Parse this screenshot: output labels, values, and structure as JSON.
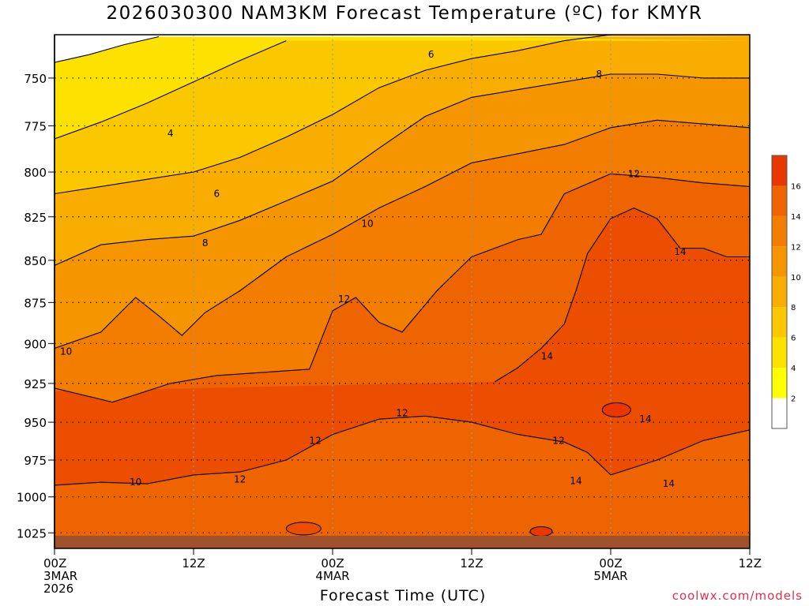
{
  "chart_data": {
    "type": "heatmap",
    "title": "2026030300 NAM3KM Forecast Temperature (ºC) for KMYR",
    "xlabel": "Forecast Time (UTC)",
    "ylabel": "",
    "credit": "coolwx.com/models",
    "x_ticks": [
      {
        "label": "00Z",
        "label2": "3MAR",
        "label3": "2026",
        "hour": 0
      },
      {
        "label": "12Z",
        "label2": "",
        "label3": "",
        "hour": 12
      },
      {
        "label": "00Z",
        "label2": "4MAR",
        "label3": "",
        "hour": 24
      },
      {
        "label": "12Z",
        "label2": "",
        "label3": "",
        "hour": 36
      },
      {
        "label": "00Z",
        "label2": "5MAR",
        "label3": "",
        "hour": 48
      },
      {
        "label": "12Z",
        "label2": "",
        "label3": "",
        "hour": 60
      }
    ],
    "xlim": [
      0,
      60
    ],
    "y_ticks": [
      "750",
      "775",
      "800",
      "825",
      "850",
      "875",
      "900",
      "925",
      "950",
      "975",
      "1000",
      "1025"
    ],
    "ylim": [
      728,
      1036
    ],
    "y_scale": "log-pressure",
    "legend_placement": "right",
    "legend_levels": [
      2,
      4,
      6,
      8,
      10,
      12,
      14,
      16
    ],
    "legend_labels": [
      "2",
      "4",
      "6",
      "8",
      "10",
      "12",
      "14",
      "16"
    ],
    "legend_colors": [
      "#ffffff",
      "#ffff00",
      "#fde200",
      "#fbc800",
      "#f9ad00",
      "#f59500",
      "#f27d00",
      "#ee6400",
      "#eb4e00",
      "#e83800",
      "#e62a00"
    ],
    "ground_color": "#a0522d",
    "contour_labels": [
      {
        "text": "4",
        "hour": 10,
        "p": 779
      },
      {
        "text": "6",
        "hour": 32.5,
        "p": 738
      },
      {
        "text": "6",
        "hour": 14,
        "p": 812
      },
      {
        "text": "8",
        "hour": 47,
        "p": 748
      },
      {
        "text": "8",
        "hour": 13,
        "p": 840
      },
      {
        "text": "10",
        "hour": 27,
        "p": 829
      },
      {
        "text": "10",
        "hour": 1,
        "p": 905
      },
      {
        "text": "10",
        "hour": 7,
        "p": 990
      },
      {
        "text": "12",
        "hour": 50,
        "p": 801
      },
      {
        "text": "12",
        "hour": 25,
        "p": 873
      },
      {
        "text": "12",
        "hour": 30,
        "p": 944
      },
      {
        "text": "12",
        "hour": 22.5,
        "p": 962
      },
      {
        "text": "12",
        "hour": 16,
        "p": 988
      },
      {
        "text": "12",
        "hour": 43.5,
        "p": 962
      },
      {
        "text": "14",
        "hour": 54,
        "p": 845
      },
      {
        "text": "14",
        "hour": 42.5,
        "p": 908
      },
      {
        "text": "14",
        "hour": 51,
        "p": 948
      },
      {
        "text": "14",
        "hour": 45,
        "p": 989
      },
      {
        "text": "14",
        "hour": 53,
        "p": 991
      }
    ],
    "isotherms": {
      "t4": [
        [
          0,
          742
        ],
        [
          3,
          738
        ],
        [
          6,
          733
        ],
        [
          9,
          729
        ]
      ],
      "t4b": [
        [
          0,
          782
        ],
        [
          4,
          773
        ],
        [
          8,
          763
        ],
        [
          12,
          752
        ],
        [
          16,
          741
        ],
        [
          20,
          731
        ]
      ],
      "t6": [
        [
          0,
          812
        ],
        [
          4,
          808
        ],
        [
          8,
          804
        ],
        [
          12,
          800
        ],
        [
          16,
          792
        ],
        [
          20,
          781
        ],
        [
          24,
          769
        ],
        [
          28,
          755
        ],
        [
          32,
          746
        ],
        [
          36,
          740
        ],
        [
          40,
          736
        ],
        [
          44,
          731
        ],
        [
          48,
          728
        ]
      ],
      "t8": [
        [
          0,
          853
        ],
        [
          4,
          841
        ],
        [
          8,
          838
        ],
        [
          12,
          836
        ],
        [
          16,
          827
        ],
        [
          20,
          816
        ],
        [
          24,
          805
        ],
        [
          28,
          787
        ],
        [
          32,
          770
        ],
        [
          36,
          760
        ],
        [
          40,
          756
        ],
        [
          44,
          752
        ],
        [
          48,
          748
        ],
        [
          52,
          748
        ],
        [
          56,
          750
        ],
        [
          60,
          750
        ]
      ],
      "t10": [
        [
          0,
          903
        ],
        [
          4,
          893
        ],
        [
          7,
          872
        ],
        [
          9,
          883
        ],
        [
          11,
          895
        ],
        [
          13,
          881
        ],
        [
          16,
          868
        ],
        [
          20,
          848
        ],
        [
          24,
          835
        ],
        [
          28,
          820
        ],
        [
          32,
          808
        ],
        [
          36,
          795
        ],
        [
          40,
          790
        ],
        [
          44,
          785
        ],
        [
          48,
          776
        ],
        [
          52,
          772
        ],
        [
          56,
          774
        ],
        [
          60,
          776
        ]
      ],
      "t12": [
        [
          0,
          928
        ],
        [
          5,
          937
        ],
        [
          10,
          925
        ],
        [
          14,
          920
        ],
        [
          18,
          918
        ],
        [
          22,
          916
        ],
        [
          24,
          880
        ],
        [
          26,
          872
        ],
        [
          28,
          887
        ],
        [
          30,
          893
        ],
        [
          33,
          868
        ],
        [
          36,
          848
        ],
        [
          40,
          838
        ],
        [
          42,
          835
        ],
        [
          44,
          812
        ],
        [
          48,
          801
        ],
        [
          52,
          803
        ],
        [
          56,
          806
        ],
        [
          60,
          808
        ]
      ],
      "t14": [
        [
          38,
          924
        ],
        [
          40,
          915
        ],
        [
          42,
          903
        ],
        [
          44,
          888
        ],
        [
          45,
          868
        ],
        [
          46,
          846
        ],
        [
          48,
          826
        ],
        [
          50,
          820
        ],
        [
          52,
          826
        ],
        [
          54,
          843
        ],
        [
          56,
          843
        ],
        [
          58,
          848
        ],
        [
          60,
          848
        ]
      ],
      "t12low": [
        [
          0,
          992
        ],
        [
          4,
          990
        ],
        [
          8,
          991
        ],
        [
          12,
          985
        ],
        [
          16,
          983
        ],
        [
          20,
          975
        ],
        [
          24,
          958
        ],
        [
          28,
          948
        ],
        [
          32,
          946
        ],
        [
          36,
          950
        ],
        [
          40,
          958
        ],
        [
          44,
          963
        ],
        [
          46,
          970
        ],
        [
          48,
          985
        ],
        [
          52,
          975
        ],
        [
          56,
          962
        ],
        [
          60,
          955
        ]
      ]
    }
  }
}
